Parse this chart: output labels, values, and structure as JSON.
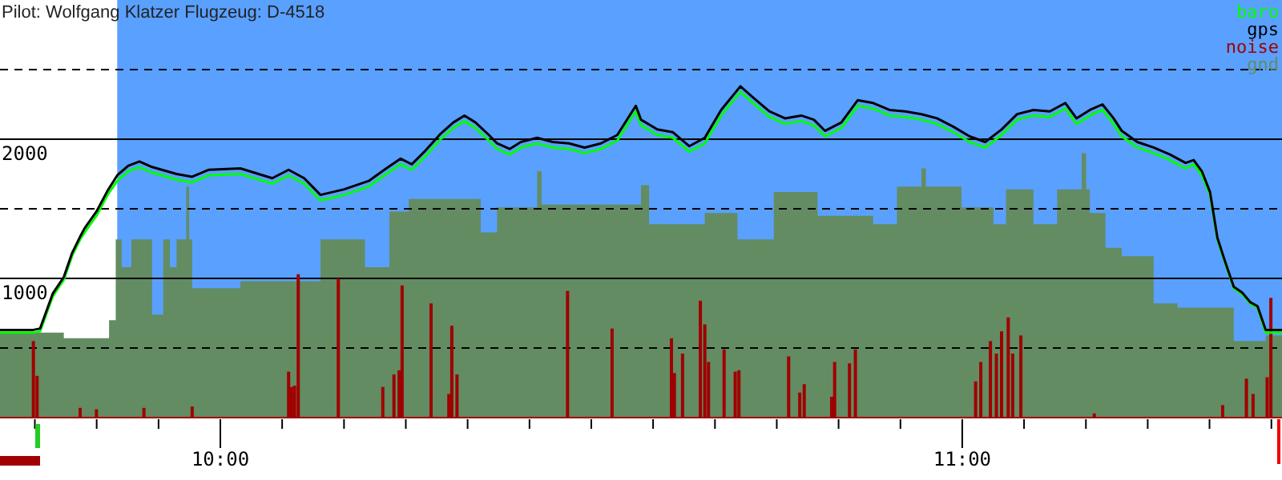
{
  "chart_data": {
    "type": "line",
    "title": "Pilot: Wolfgang Klatzer Flugzeug: D-4518",
    "xlim": [
      9.703,
      11.431
    ],
    "ylim": [
      0,
      3000
    ],
    "xticks": [
      {
        "value": 9.75,
        "label": null
      },
      {
        "value": 9.8333,
        "label": null
      },
      {
        "value": 9.9167,
        "label": null
      },
      {
        "value": 10,
        "label": "10:00"
      },
      {
        "value": 10.0833,
        "label": null
      },
      {
        "value": 10.1667,
        "label": null
      },
      {
        "value": 10.25,
        "label": null
      },
      {
        "value": 10.3333,
        "label": null
      },
      {
        "value": 10.4167,
        "label": null
      },
      {
        "value": 10.5,
        "label": null
      },
      {
        "value": 10.5833,
        "label": null
      },
      {
        "value": 10.6667,
        "label": null
      },
      {
        "value": 10.75,
        "label": null
      },
      {
        "value": 10.8333,
        "label": null
      },
      {
        "value": 10.9167,
        "label": null
      },
      {
        "value": 11,
        "label": "11:00"
      },
      {
        "value": 11.0833,
        "label": null
      },
      {
        "value": 11.1667,
        "label": null
      },
      {
        "value": 11.25,
        "label": null
      },
      {
        "value": 11.3333,
        "label": null
      },
      {
        "value": 11.4167,
        "label": null
      }
    ],
    "yticks": [
      {
        "value": 500,
        "label": null
      },
      1000,
      {
        "value": 1500,
        "label": null
      },
      2000,
      {
        "value": 2500,
        "label": null
      }
    ],
    "grid": "y",
    "legend": "top right",
    "bands": [
      {
        "axis": "x",
        "from": 9.861,
        "to": 11.431,
        "color": "#5aa0ff"
      }
    ],
    "series": [
      {
        "name": "gnd",
        "type": "area",
        "color": "#638c63",
        "x": [
          9.703,
          9.789,
          9.85,
          9.859,
          9.867,
          9.88,
          9.908,
          9.923,
          9.932,
          9.941,
          9.954,
          9.958,
          9.962,
          10.027,
          10.135,
          10.161,
          10.195,
          10.228,
          10.254,
          10.351,
          10.373,
          10.427,
          10.433,
          10.567,
          10.578,
          10.653,
          10.697,
          10.746,
          10.805,
          10.88,
          10.912,
          10.945,
          10.951,
          10.999,
          11.042,
          11.059,
          11.096,
          11.128,
          11.161,
          11.167,
          11.172,
          11.193,
          11.215,
          11.258,
          11.29,
          11.366,
          11.409,
          11.431
        ],
        "values": [
          610,
          570,
          700,
          1280,
          1080,
          1280,
          740,
          1280,
          1080,
          1280,
          1660,
          1280,
          930,
          980,
          1280,
          1280,
          1080,
          1480,
          1570,
          1330,
          1510,
          1770,
          1530,
          1670,
          1390,
          1470,
          1280,
          1620,
          1450,
          1390,
          1660,
          1790,
          1660,
          1510,
          1390,
          1640,
          1390,
          1640,
          1900,
          1640,
          1470,
          1220,
          1160,
          820,
          790,
          550,
          590,
          590
        ]
      },
      {
        "name": "noise",
        "type": "bar",
        "color": "#a00000",
        "x": [
          9.748,
          9.753,
          9.811,
          9.833,
          9.897,
          9.962,
          10.092,
          10.096,
          10.1,
          10.105,
          10.159,
          10.219,
          10.234,
          10.241,
          10.245,
          10.284,
          10.308,
          10.312,
          10.319,
          10.468,
          10.528,
          10.608,
          10.612,
          10.623,
          10.647,
          10.653,
          10.658,
          10.679,
          10.694,
          10.699,
          10.766,
          10.781,
          10.787,
          10.824,
          10.828,
          10.848,
          10.856,
          11.018,
          11.025,
          11.038,
          11.046,
          11.053,
          11.062,
          11.068,
          11.079,
          11.178,
          11.351,
          11.383,
          11.392,
          11.411,
          11.416
        ],
        "values": [
          550,
          300,
          70,
          60,
          70,
          80,
          330,
          220,
          230,
          1030,
          1000,
          220,
          310,
          340,
          950,
          820,
          170,
          660,
          310,
          910,
          640,
          570,
          320,
          460,
          840,
          670,
          400,
          490,
          330,
          340,
          440,
          180,
          240,
          150,
          400,
          390,
          490,
          260,
          400,
          550,
          460,
          620,
          720,
          460,
          590,
          30,
          90,
          280,
          170,
          290,
          860
        ]
      },
      {
        "name": "baro",
        "color": "#00ff00",
        "x": [
          9.703,
          9.748,
          9.757,
          9.774,
          9.789,
          9.8,
          9.811,
          9.817,
          9.833,
          9.848,
          9.861,
          9.876,
          9.891,
          9.908,
          9.941,
          9.962,
          9.984,
          10.027,
          10.07,
          10.092,
          10.113,
          10.135,
          10.167,
          10.2,
          10.221,
          10.243,
          10.258,
          10.275,
          10.297,
          10.314,
          10.329,
          10.344,
          10.362,
          10.373,
          10.39,
          10.405,
          10.427,
          10.448,
          10.47,
          10.491,
          10.513,
          10.535,
          10.56,
          10.567,
          10.589,
          10.61,
          10.632,
          10.653,
          10.675,
          10.701,
          10.718,
          10.74,
          10.761,
          10.783,
          10.8,
          10.815,
          10.837,
          10.859,
          10.88,
          10.902,
          10.923,
          10.945,
          10.966,
          10.988,
          11.01,
          11.031,
          11.053,
          11.074,
          11.096,
          11.118,
          11.139,
          11.154,
          11.172,
          11.189,
          11.204,
          11.215,
          11.236,
          11.258,
          11.28,
          11.301,
          11.312,
          11.323,
          11.334,
          11.344,
          11.355,
          11.366,
          11.377,
          11.388,
          11.398,
          11.409,
          11.431
        ],
        "values": [
          610,
          610,
          620,
          870,
          990,
          1160,
          1280,
          1330,
          1450,
          1600,
          1700,
          1770,
          1800,
          1760,
          1710,
          1690,
          1740,
          1750,
          1680,
          1740,
          1680,
          1560,
          1600,
          1660,
          1740,
          1820,
          1780,
          1870,
          2000,
          2080,
          2130,
          2080,
          1990,
          1930,
          1890,
          1940,
          1970,
          1940,
          1930,
          1900,
          1930,
          1990,
          2200,
          2100,
          2030,
          2010,
          1910,
          1970,
          2170,
          2340,
          2260,
          2160,
          2110,
          2130,
          2100,
          2020,
          2080,
          2240,
          2220,
          2170,
          2160,
          2140,
          2110,
          2050,
          1980,
          1940,
          2030,
          2140,
          2170,
          2160,
          2220,
          2110,
          2170,
          2210,
          2110,
          2020,
          1940,
          1900,
          1850,
          1790,
          1820,
          1740,
          1600,
          1280,
          1100,
          930,
          890,
          820,
          790,
          610,
          610
        ]
      },
      {
        "name": "gps",
        "color": "#000000",
        "x": [
          9.703,
          9.748,
          9.757,
          9.774,
          9.789,
          9.8,
          9.811,
          9.817,
          9.833,
          9.848,
          9.861,
          9.876,
          9.891,
          9.908,
          9.941,
          9.962,
          9.984,
          10.027,
          10.07,
          10.092,
          10.113,
          10.135,
          10.167,
          10.2,
          10.221,
          10.243,
          10.258,
          10.275,
          10.297,
          10.314,
          10.329,
          10.344,
          10.362,
          10.373,
          10.39,
          10.405,
          10.427,
          10.448,
          10.47,
          10.491,
          10.513,
          10.535,
          10.56,
          10.567,
          10.589,
          10.61,
          10.632,
          10.653,
          10.675,
          10.701,
          10.718,
          10.74,
          10.761,
          10.783,
          10.8,
          10.815,
          10.837,
          10.859,
          10.88,
          10.902,
          10.923,
          10.945,
          10.966,
          10.988,
          11.01,
          11.031,
          11.053,
          11.074,
          11.096,
          11.118,
          11.139,
          11.154,
          11.172,
          11.189,
          11.204,
          11.215,
          11.236,
          11.258,
          11.28,
          11.301,
          11.312,
          11.323,
          11.334,
          11.344,
          11.355,
          11.366,
          11.377,
          11.388,
          11.398,
          11.409,
          11.431
        ],
        "values": [
          630,
          630,
          640,
          890,
          1010,
          1180,
          1300,
          1360,
          1480,
          1630,
          1740,
          1810,
          1840,
          1800,
          1750,
          1730,
          1780,
          1790,
          1720,
          1780,
          1720,
          1600,
          1640,
          1700,
          1780,
          1860,
          1820,
          1910,
          2040,
          2120,
          2170,
          2120,
          2030,
          1970,
          1930,
          1980,
          2010,
          1980,
          1970,
          1940,
          1970,
          2030,
          2240,
          2140,
          2070,
          2050,
          1950,
          2010,
          2210,
          2380,
          2300,
          2200,
          2150,
          2170,
          2140,
          2060,
          2120,
          2280,
          2260,
          2210,
          2200,
          2180,
          2150,
          2090,
          2020,
          1980,
          2070,
          2180,
          2210,
          2200,
          2260,
          2150,
          2210,
          2250,
          2150,
          2060,
          1980,
          1940,
          1890,
          1830,
          1850,
          1770,
          1620,
          1290,
          1110,
          940,
          900,
          830,
          800,
          630,
          630
        ]
      }
    ]
  }
}
